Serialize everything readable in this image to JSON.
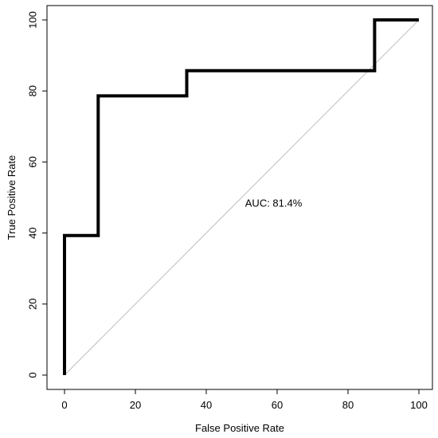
{
  "chart_data": {
    "type": "line",
    "title": "",
    "xlabel": "False Positive Rate",
    "ylabel": "True Positive Rate",
    "xlim": [
      0,
      100
    ],
    "ylim": [
      0,
      100
    ],
    "x_ticks": [
      0,
      20,
      40,
      60,
      80,
      100
    ],
    "y_ticks": [
      0,
      20,
      40,
      60,
      80,
      100
    ],
    "grid": false,
    "legend": "none",
    "annotation": "AUC: 81.4%",
    "annotation_position": [
      59,
      48.5
    ],
    "series": [
      {
        "x": [
          0,
          0,
          9.5,
          9.5,
          34.5,
          34.5,
          87.5,
          87.5,
          100
        ],
        "y": [
          0,
          39.3,
          39.3,
          78.6,
          78.6,
          85.7,
          85.7,
          100,
          100
        ],
        "color": "#000000"
      },
      {
        "x": [
          0,
          100
        ],
        "y": [
          0,
          100
        ],
        "color": "#bebebe"
      }
    ]
  }
}
